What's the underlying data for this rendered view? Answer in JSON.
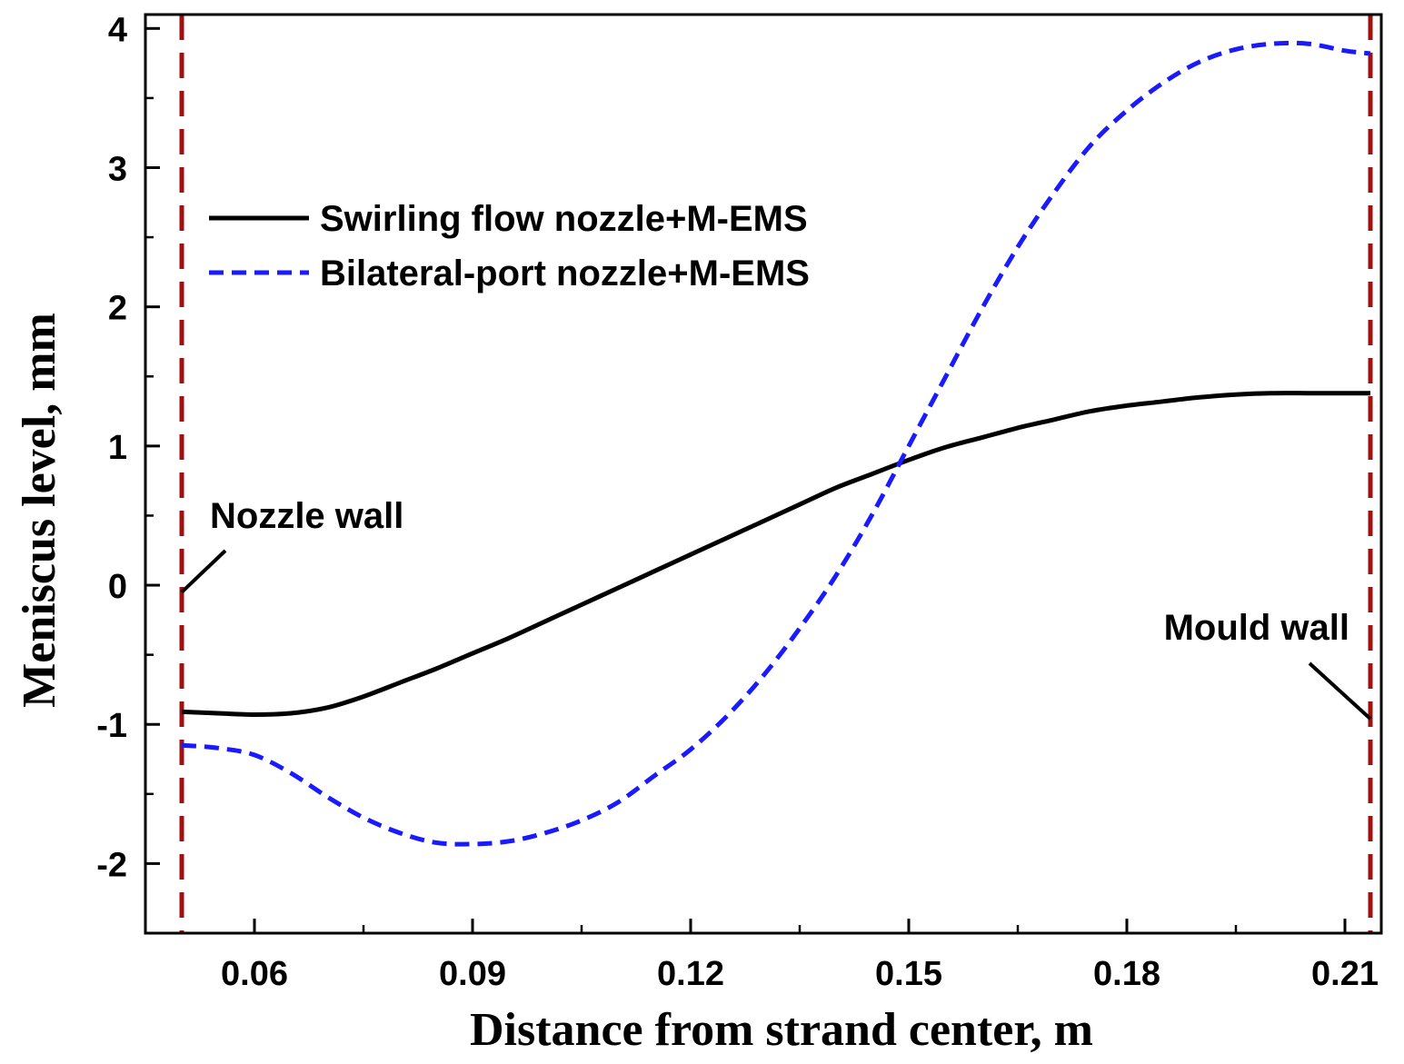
{
  "chart_data": {
    "type": "line",
    "title": "",
    "xlabel": "Distance from strand center, m",
    "ylabel": "Meniscus level, mm",
    "xlim": [
      0.045,
      0.215
    ],
    "ylim": [
      -2.5,
      4.1
    ],
    "xticks": [
      0.06,
      0.09,
      0.12,
      0.15,
      0.18,
      0.21
    ],
    "xtick_labels": [
      "0.06",
      "0.09",
      "0.12",
      "0.15",
      "0.18",
      "0.21"
    ],
    "xminor": [
      0.045,
      0.075,
      0.105,
      0.135,
      0.165,
      0.195
    ],
    "yticks": [
      -2,
      -1,
      0,
      1,
      2,
      3,
      4
    ],
    "ytick_labels": [
      "-2",
      "-1",
      "0",
      "1",
      "2",
      "3",
      "4"
    ],
    "yminor": [
      -2.5,
      -1.5,
      -0.5,
      0.5,
      1.5,
      2.5,
      3.5
    ],
    "grid": false,
    "legend_position": "top-left",
    "series": [
      {
        "name": "Swirling flow nozzle+M-EMS",
        "style": "solid",
        "color": "#000000",
        "x": [
          0.05,
          0.055,
          0.06,
          0.065,
          0.07,
          0.075,
          0.08,
          0.085,
          0.09,
          0.095,
          0.1,
          0.105,
          0.11,
          0.115,
          0.12,
          0.125,
          0.13,
          0.135,
          0.14,
          0.145,
          0.15,
          0.155,
          0.16,
          0.165,
          0.17,
          0.175,
          0.18,
          0.185,
          0.19,
          0.195,
          0.2,
          0.205,
          0.21,
          0.2135
        ],
        "y": [
          -0.91,
          -0.92,
          -0.93,
          -0.92,
          -0.88,
          -0.8,
          -0.7,
          -0.6,
          -0.49,
          -0.38,
          -0.26,
          -0.14,
          -0.02,
          0.1,
          0.22,
          0.34,
          0.46,
          0.58,
          0.7,
          0.8,
          0.9,
          0.99,
          1.06,
          1.13,
          1.19,
          1.25,
          1.29,
          1.32,
          1.35,
          1.37,
          1.38,
          1.38,
          1.38,
          1.38
        ]
      },
      {
        "name": "Bilateral-port nozzle+M-EMS",
        "style": "dashed",
        "color": "#1a1aff",
        "x": [
          0.05,
          0.055,
          0.06,
          0.065,
          0.07,
          0.075,
          0.08,
          0.085,
          0.09,
          0.095,
          0.1,
          0.105,
          0.11,
          0.115,
          0.12,
          0.125,
          0.13,
          0.135,
          0.14,
          0.145,
          0.15,
          0.155,
          0.16,
          0.165,
          0.17,
          0.175,
          0.18,
          0.185,
          0.19,
          0.195,
          0.2,
          0.205,
          0.21,
          0.2135
        ],
        "y": [
          -1.15,
          -1.17,
          -1.22,
          -1.35,
          -1.52,
          -1.67,
          -1.78,
          -1.85,
          -1.86,
          -1.84,
          -1.78,
          -1.69,
          -1.56,
          -1.37,
          -1.18,
          -0.94,
          -0.65,
          -0.31,
          0.07,
          0.51,
          1.0,
          1.49,
          1.98,
          2.43,
          2.82,
          3.16,
          3.41,
          3.61,
          3.76,
          3.85,
          3.89,
          3.89,
          3.84,
          3.82
        ]
      }
    ],
    "vlines": [
      {
        "x": 0.05,
        "color": "#a01010",
        "style": "dashed"
      },
      {
        "x": 0.2135,
        "color": "#a01010",
        "style": "dashed"
      }
    ],
    "annotations": [
      {
        "text": "Nozzle wall",
        "target_x": 0.05,
        "target_y": -0.05
      },
      {
        "text": "Mould wall",
        "target_x": 0.2135,
        "target_y": -0.96
      }
    ]
  }
}
